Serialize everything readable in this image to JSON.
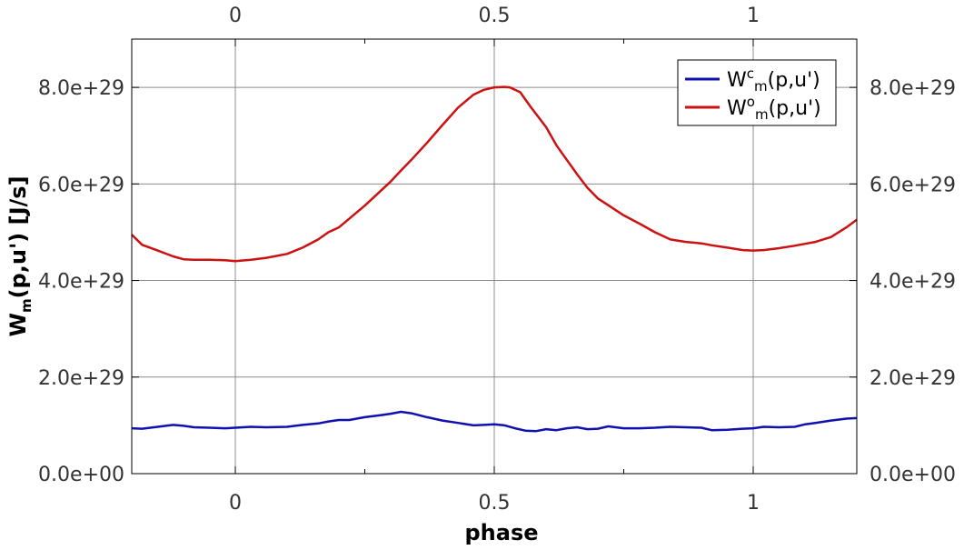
{
  "chart_data": {
    "type": "line",
    "title": "",
    "xlabel": "phase",
    "ylabel": {
      "base": "W",
      "sub": "m",
      "rest": "(p,u') [J/s]"
    },
    "xlim": [
      -0.2,
      1.2
    ],
    "ylim": [
      0,
      9e+29
    ],
    "x_ticks": [
      {
        "value": 0,
        "label": "0"
      },
      {
        "value": 0.5,
        "label": "0.5"
      },
      {
        "value": 1,
        "label": "1"
      }
    ],
    "x_minor_ticks": [
      0.25,
      0.75
    ],
    "y_ticks": [
      {
        "value": 0,
        "label": "0.0e+00"
      },
      {
        "value": 2e+29,
        "label": "2.0e+29"
      },
      {
        "value": 4e+29,
        "label": "4.0e+29"
      },
      {
        "value": 6e+29,
        "label": "6.0e+29"
      },
      {
        "value": 8e+29,
        "label": "8.0e+29"
      }
    ],
    "grid": true,
    "legend_position": "top-right",
    "series": [
      {
        "name": {
          "base": "W",
          "sup": "c",
          "sub": "m",
          "rest": "(p,u')"
        },
        "color": "#1010b0",
        "x": [
          -0.2,
          -0.18,
          -0.15,
          -0.12,
          -0.1,
          -0.08,
          -0.05,
          -0.02,
          0.0,
          0.03,
          0.06,
          0.1,
          0.13,
          0.16,
          0.18,
          0.2,
          0.22,
          0.25,
          0.28,
          0.3,
          0.32,
          0.34,
          0.37,
          0.4,
          0.43,
          0.46,
          0.48,
          0.5,
          0.52,
          0.54,
          0.56,
          0.58,
          0.6,
          0.62,
          0.64,
          0.66,
          0.68,
          0.7,
          0.72,
          0.75,
          0.78,
          0.81,
          0.84,
          0.87,
          0.9,
          0.92,
          0.95,
          0.98,
          1.0,
          1.02,
          1.05,
          1.08,
          1.1,
          1.12,
          1.15,
          1.18,
          1.2
        ],
        "y": [
          9.4e+28,
          9.3e+28,
          9.7e+28,
          1.01e+29,
          9.9e+28,
          9.6e+28,
          9.5e+28,
          9.4e+28,
          9.5e+28,
          9.7e+28,
          9.6e+28,
          9.7e+28,
          1.01e+29,
          1.04e+29,
          1.08e+29,
          1.11e+29,
          1.11e+29,
          1.17e+29,
          1.21e+29,
          1.24e+29,
          1.28e+29,
          1.25e+29,
          1.17e+29,
          1.1e+29,
          1.05e+29,
          1e+29,
          1.01e+29,
          1.02e+29,
          1e+29,
          9.4e+28,
          8.9e+28,
          8.8e+28,
          9.2e+28,
          9e+28,
          9.4e+28,
          9.6e+28,
          9.2e+28,
          9.3e+28,
          9.8e+28,
          9.4e+28,
          9.4e+28,
          9.5e+28,
          9.7e+28,
          9.6e+28,
          9.5e+28,
          9e+28,
          9.1e+28,
          9.3e+28,
          9.4e+28,
          9.7e+28,
          9.6e+28,
          9.7e+28,
          1.02e+29,
          1.05e+29,
          1.1e+29,
          1.14e+29,
          1.15e+29
        ]
      },
      {
        "name": {
          "base": "W",
          "sup": "o",
          "sub": "m",
          "rest": "(p,u')"
        },
        "color": "#cc1111",
        "x": [
          -0.2,
          -0.18,
          -0.15,
          -0.12,
          -0.1,
          -0.08,
          -0.05,
          -0.02,
          0.0,
          0.03,
          0.06,
          0.1,
          0.13,
          0.16,
          0.18,
          0.2,
          0.22,
          0.25,
          0.28,
          0.3,
          0.32,
          0.34,
          0.37,
          0.4,
          0.43,
          0.46,
          0.48,
          0.5,
          0.52,
          0.53,
          0.55,
          0.57,
          0.6,
          0.62,
          0.64,
          0.66,
          0.68,
          0.7,
          0.72,
          0.75,
          0.78,
          0.81,
          0.84,
          0.87,
          0.9,
          0.92,
          0.95,
          0.98,
          1.0,
          1.02,
          1.05,
          1.08,
          1.1,
          1.12,
          1.15,
          1.18,
          1.2
        ],
        "y": [
          4.95e+29,
          4.74e+29,
          4.62e+29,
          4.5e+29,
          4.44e+29,
          4.43e+29,
          4.43e+29,
          4.42e+29,
          4.4e+29,
          4.43e+29,
          4.47e+29,
          4.55e+29,
          4.68e+29,
          4.85e+29,
          5e+29,
          5.1e+29,
          5.28e+29,
          5.55e+29,
          5.85e+29,
          6.05e+29,
          6.28e+29,
          6.5e+29,
          6.85e+29,
          7.22e+29,
          7.58e+29,
          7.85e+29,
          7.95e+29,
          8e+29,
          8.01e+29,
          8e+29,
          7.9e+29,
          7.6e+29,
          7.18e+29,
          6.8e+29,
          6.5e+29,
          6.2e+29,
          5.92e+29,
          5.7e+29,
          5.56e+29,
          5.35e+29,
          5.18e+29,
          5e+29,
          4.85e+29,
          4.8e+29,
          4.77e+29,
          4.73e+29,
          4.68e+29,
          4.63e+29,
          4.62e+29,
          4.63e+29,
          4.67e+29,
          4.72e+29,
          4.76e+29,
          4.8e+29,
          4.9e+29,
          5.1e+29,
          5.26e+29
        ]
      }
    ]
  }
}
